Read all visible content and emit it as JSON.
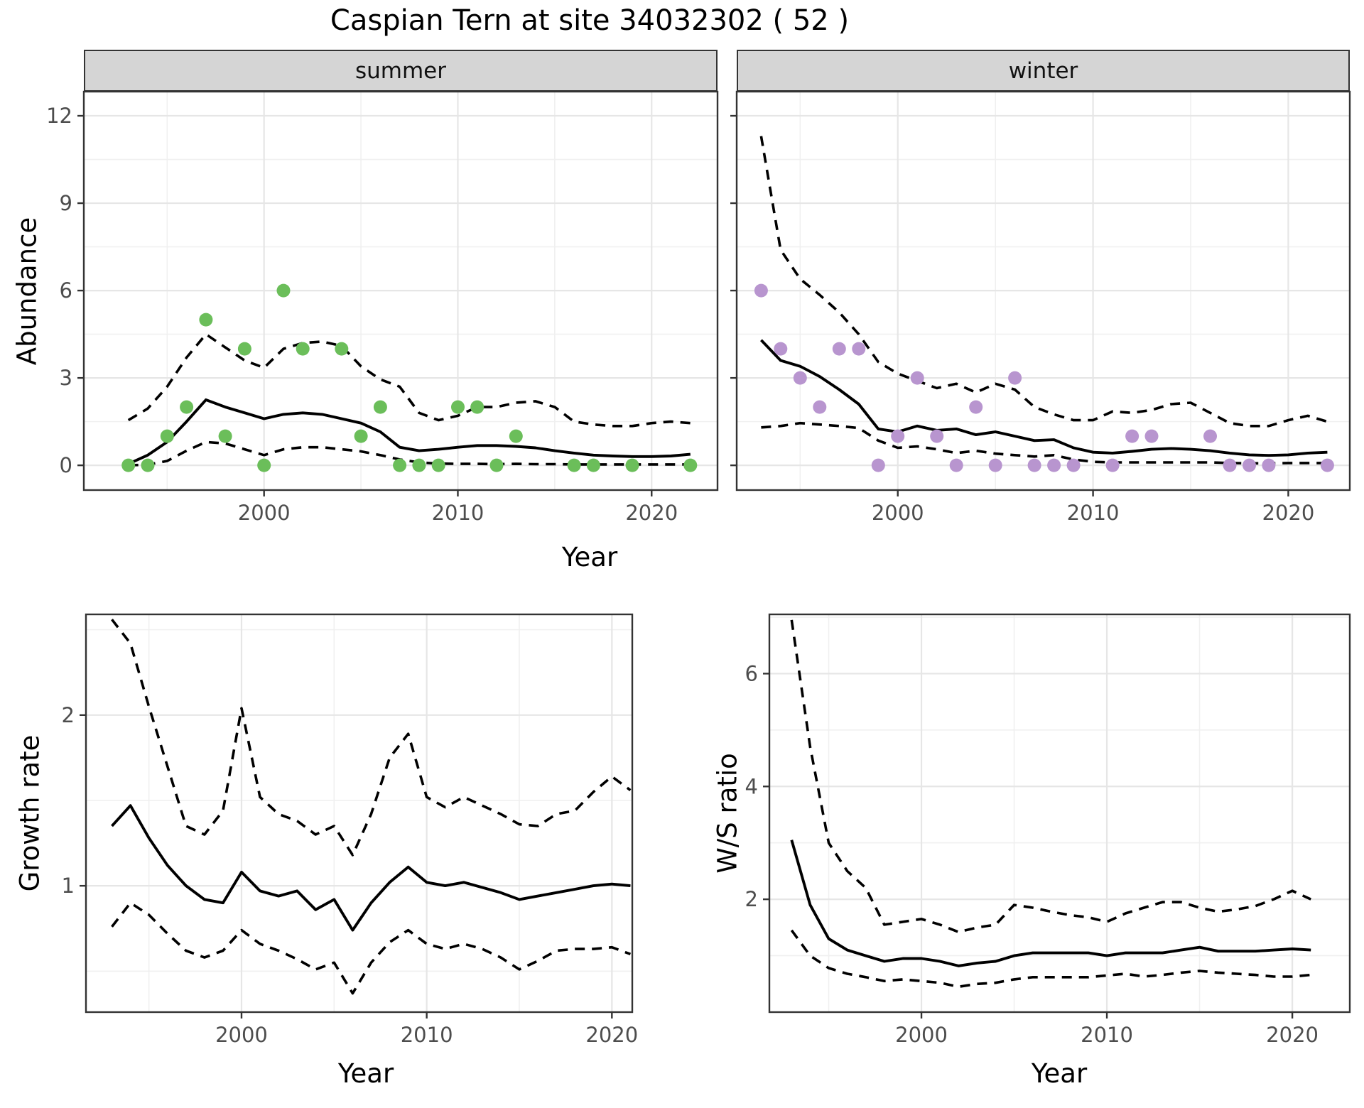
{
  "title": "Caspian Tern at site 34032302 ( 52 )",
  "facets": {
    "summer": "summer",
    "winter": "winter"
  },
  "axis": {
    "abundance": "Abundance",
    "growth_rate": "Growth rate",
    "ws_ratio": "W/S ratio",
    "year": "Year"
  },
  "colors": {
    "summer_point": "#6bbe5a",
    "winter_point": "#b895cf",
    "line": "#000000",
    "grid_major": "#e6e6e6",
    "grid_minor": "#f0f0f0",
    "strip_bg": "#d5d5d5",
    "panel_border": "#333333",
    "tick_text": "#4d4d4d"
  },
  "chart_data": [
    {
      "id": "abundance-summer",
      "type": "line",
      "facet_label": "summer",
      "xlabel": "Year",
      "ylabel": "Abundance",
      "xlim": [
        1990.7,
        2023.4
      ],
      "ylim": [
        -0.85,
        12.83
      ],
      "x_ticks": [
        2000,
        2010,
        2020
      ],
      "x_minor": [
        1995,
        2005,
        2015
      ],
      "y_ticks": [
        0,
        3,
        6,
        9,
        12
      ],
      "y_minor": [
        1.5,
        4.5,
        7.5,
        10.5
      ],
      "years": [
        1993,
        1994,
        1995,
        1996,
        1997,
        1998,
        1999,
        2000,
        2001,
        2002,
        2003,
        2004,
        2005,
        2006,
        2007,
        2008,
        2009,
        2010,
        2011,
        2012,
        2013,
        2014,
        2015,
        2016,
        2017,
        2018,
        2019,
        2020,
        2021,
        2022
      ],
      "series": [
        {
          "name": "upper-ci",
          "style": "dashed",
          "values": [
            1.55,
            1.95,
            2.7,
            3.7,
            4.5,
            4.05,
            3.6,
            3.35,
            4.0,
            4.2,
            4.25,
            4.1,
            3.4,
            2.95,
            2.7,
            1.8,
            1.55,
            1.7,
            2.0,
            2.0,
            2.15,
            2.2,
            2.0,
            1.5,
            1.4,
            1.35,
            1.35,
            1.45,
            1.5,
            1.45
          ]
        },
        {
          "name": "lower-ci",
          "style": "dashed",
          "values": [
            0.0,
            0.02,
            0.15,
            0.5,
            0.8,
            0.75,
            0.55,
            0.35,
            0.55,
            0.62,
            0.62,
            0.55,
            0.48,
            0.35,
            0.2,
            0.1,
            0.06,
            0.05,
            0.05,
            0.04,
            0.05,
            0.04,
            0.04,
            0.03,
            0.03,
            0.03,
            0.03,
            0.03,
            0.03,
            0.03
          ]
        },
        {
          "name": "median",
          "style": "solid",
          "values": [
            0.05,
            0.35,
            0.8,
            1.5,
            2.25,
            2.0,
            1.8,
            1.6,
            1.75,
            1.8,
            1.75,
            1.6,
            1.45,
            1.15,
            0.62,
            0.5,
            0.55,
            0.62,
            0.68,
            0.68,
            0.65,
            0.6,
            0.5,
            0.42,
            0.35,
            0.32,
            0.3,
            0.3,
            0.32,
            0.38
          ]
        }
      ],
      "points": {
        "color": "#6bbe5a",
        "data": [
          [
            1993,
            0
          ],
          [
            1994,
            0
          ],
          [
            1995,
            1
          ],
          [
            1996,
            2
          ],
          [
            1997,
            5
          ],
          [
            1998,
            1
          ],
          [
            1999,
            4
          ],
          [
            2000,
            0
          ],
          [
            2001,
            6
          ],
          [
            2002,
            4
          ],
          [
            2004,
            4
          ],
          [
            2005,
            1
          ],
          [
            2006,
            2
          ],
          [
            2007,
            0
          ],
          [
            2008,
            0
          ],
          [
            2009,
            0
          ],
          [
            2010,
            2
          ],
          [
            2011,
            2
          ],
          [
            2012,
            0
          ],
          [
            2013,
            1
          ],
          [
            2016,
            0
          ],
          [
            2017,
            0
          ],
          [
            2019,
            0
          ],
          [
            2022,
            0
          ]
        ]
      }
    },
    {
      "id": "abundance-winter",
      "type": "line",
      "facet_label": "winter",
      "xlabel": "Year",
      "ylabel": "Abundance",
      "xlim": [
        1991.75,
        2023.15
      ],
      "ylim": [
        -0.85,
        12.83
      ],
      "x_ticks": [
        2000,
        2010,
        2020
      ],
      "x_minor": [
        1995,
        2005,
        2015
      ],
      "y_ticks": [
        0,
        3,
        6,
        9,
        12
      ],
      "y_minor": [
        1.5,
        4.5,
        7.5,
        10.5
      ],
      "years": [
        1993,
        1994,
        1995,
        1996,
        1997,
        1998,
        1999,
        2000,
        2001,
        2002,
        2003,
        2004,
        2005,
        2006,
        2007,
        2008,
        2009,
        2010,
        2011,
        2012,
        2013,
        2014,
        2015,
        2016,
        2017,
        2018,
        2019,
        2020,
        2021,
        2022
      ],
      "series": [
        {
          "name": "upper-ci",
          "style": "dashed",
          "values": [
            11.3,
            7.4,
            6.4,
            5.85,
            5.25,
            4.5,
            3.55,
            3.15,
            2.9,
            2.65,
            2.8,
            2.5,
            2.8,
            2.6,
            2.0,
            1.75,
            1.55,
            1.55,
            1.85,
            1.8,
            1.9,
            2.1,
            2.15,
            1.8,
            1.45,
            1.35,
            1.35,
            1.55,
            1.7,
            1.5
          ]
        },
        {
          "name": "lower-ci",
          "style": "dashed",
          "values": [
            1.3,
            1.35,
            1.45,
            1.4,
            1.35,
            1.28,
            0.85,
            0.6,
            0.65,
            0.55,
            0.42,
            0.5,
            0.4,
            0.35,
            0.3,
            0.35,
            0.2,
            0.12,
            0.1,
            0.1,
            0.1,
            0.1,
            0.1,
            0.1,
            0.08,
            0.07,
            0.07,
            0.08,
            0.08,
            0.08
          ]
        },
        {
          "name": "median",
          "style": "solid",
          "values": [
            4.3,
            3.6,
            3.4,
            3.05,
            2.6,
            2.1,
            1.25,
            1.15,
            1.35,
            1.2,
            1.25,
            1.05,
            1.15,
            1.0,
            0.85,
            0.88,
            0.6,
            0.45,
            0.42,
            0.48,
            0.55,
            0.58,
            0.55,
            0.5,
            0.42,
            0.36,
            0.34,
            0.36,
            0.42,
            0.45
          ]
        }
      ],
      "points": {
        "color": "#b895cf",
        "data": [
          [
            1993,
            6
          ],
          [
            1994,
            4
          ],
          [
            1995,
            3
          ],
          [
            1996,
            2
          ],
          [
            1997,
            4
          ],
          [
            1998,
            4
          ],
          [
            1999,
            0
          ],
          [
            2000,
            1
          ],
          [
            2001,
            3
          ],
          [
            2002,
            1
          ],
          [
            2003,
            0
          ],
          [
            2004,
            2
          ],
          [
            2005,
            0
          ],
          [
            2006,
            3
          ],
          [
            2007,
            0
          ],
          [
            2008,
            0
          ],
          [
            2009,
            0
          ],
          [
            2011,
            0
          ],
          [
            2012,
            1
          ],
          [
            2013,
            1
          ],
          [
            2016,
            1
          ],
          [
            2017,
            0
          ],
          [
            2018,
            0
          ],
          [
            2019,
            0
          ],
          [
            2022,
            0
          ]
        ]
      }
    },
    {
      "id": "growth-rate",
      "type": "line",
      "facet_label": "",
      "xlabel": "Year",
      "ylabel": "Growth rate",
      "xlim": [
        1991.6,
        2021.1
      ],
      "ylim": [
        0.26,
        2.59
      ],
      "x_ticks": [
        2000,
        2010,
        2020
      ],
      "x_minor": [
        1995,
        2005,
        2015
      ],
      "y_ticks": [
        1,
        2
      ],
      "y_minor": [
        0.5,
        1.5,
        2.5
      ],
      "years": [
        1993,
        1994,
        1995,
        1996,
        1997,
        1998,
        1999,
        2000,
        2001,
        2002,
        2003,
        2004,
        2005,
        2006,
        2007,
        2008,
        2009,
        2010,
        2011,
        2012,
        2013,
        2014,
        2015,
        2016,
        2017,
        2018,
        2019,
        2020,
        2021
      ],
      "series": [
        {
          "name": "upper-ci",
          "style": "dashed",
          "values": [
            2.56,
            2.42,
            2.05,
            1.7,
            1.35,
            1.3,
            1.44,
            2.04,
            1.52,
            1.42,
            1.38,
            1.3,
            1.35,
            1.18,
            1.42,
            1.75,
            1.89,
            1.52,
            1.46,
            1.52,
            1.47,
            1.42,
            1.36,
            1.35,
            1.42,
            1.44,
            1.55,
            1.64,
            1.56
          ]
        },
        {
          "name": "lower-ci",
          "style": "dashed",
          "values": [
            0.76,
            0.9,
            0.83,
            0.72,
            0.62,
            0.58,
            0.62,
            0.74,
            0.66,
            0.62,
            0.57,
            0.51,
            0.55,
            0.37,
            0.55,
            0.67,
            0.74,
            0.66,
            0.63,
            0.66,
            0.63,
            0.58,
            0.51,
            0.56,
            0.62,
            0.63,
            0.63,
            0.64,
            0.6
          ]
        },
        {
          "name": "median",
          "style": "solid",
          "values": [
            1.35,
            1.47,
            1.28,
            1.12,
            1.0,
            0.92,
            0.9,
            1.08,
            0.97,
            0.94,
            0.97,
            0.86,
            0.92,
            0.74,
            0.9,
            1.02,
            1.11,
            1.02,
            1.0,
            1.02,
            0.99,
            0.96,
            0.92,
            0.94,
            0.96,
            0.98,
            1.0,
            1.01,
            1.0
          ]
        }
      ],
      "points": null
    },
    {
      "id": "ws-ratio",
      "type": "line",
      "facet_label": "",
      "xlabel": "Year",
      "ylabel": "W/S ratio",
      "xlim": [
        1991.8,
        2023.1
      ],
      "ylim": [
        0,
        7.05
      ],
      "x_ticks": [
        2000,
        2010,
        2020
      ],
      "x_minor": [
        1995,
        2005,
        2015
      ],
      "y_ticks": [
        2,
        4,
        6
      ],
      "y_minor": [
        1,
        3,
        5,
        7
      ],
      "years": [
        1993,
        1994,
        1995,
        1996,
        1997,
        1998,
        1999,
        2000,
        2001,
        2002,
        2003,
        2004,
        2005,
        2006,
        2007,
        2008,
        2009,
        2010,
        2011,
        2012,
        2013,
        2014,
        2015,
        2016,
        2017,
        2018,
        2019,
        2020,
        2021
      ],
      "series": [
        {
          "name": "upper-ci",
          "style": "dashed",
          "values": [
            6.95,
            4.7,
            3.0,
            2.5,
            2.2,
            1.55,
            1.6,
            1.65,
            1.55,
            1.42,
            1.5,
            1.55,
            1.9,
            1.85,
            1.78,
            1.72,
            1.68,
            1.6,
            1.75,
            1.85,
            1.95,
            1.95,
            1.85,
            1.78,
            1.82,
            1.88,
            2.0,
            2.15,
            2.0
          ]
        },
        {
          "name": "lower-ci",
          "style": "dashed",
          "values": [
            1.45,
            1.0,
            0.78,
            0.68,
            0.62,
            0.55,
            0.58,
            0.55,
            0.52,
            0.45,
            0.5,
            0.52,
            0.58,
            0.62,
            0.62,
            0.62,
            0.62,
            0.65,
            0.68,
            0.63,
            0.66,
            0.7,
            0.73,
            0.7,
            0.68,
            0.66,
            0.63,
            0.63,
            0.66
          ]
        },
        {
          "name": "median",
          "style": "solid",
          "values": [
            3.05,
            1.9,
            1.3,
            1.1,
            1.0,
            0.9,
            0.95,
            0.95,
            0.9,
            0.82,
            0.87,
            0.9,
            1.0,
            1.05,
            1.05,
            1.05,
            1.05,
            1.0,
            1.05,
            1.05,
            1.05,
            1.1,
            1.15,
            1.08,
            1.08,
            1.08,
            1.1,
            1.12,
            1.1
          ]
        }
      ],
      "points": null
    }
  ]
}
